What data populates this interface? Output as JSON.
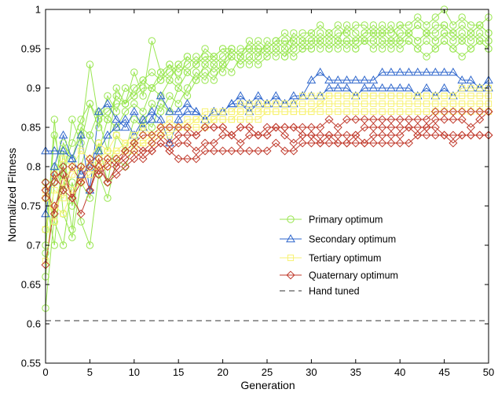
{
  "chart_data": {
    "type": "line",
    "title": "",
    "xlabel": "Generation",
    "ylabel": "Normalized Fitness",
    "xlim": [
      0,
      50
    ],
    "ylim": [
      0.55,
      1.0
    ],
    "x_ticks": [
      0,
      5,
      10,
      15,
      20,
      25,
      30,
      35,
      40,
      45,
      50
    ],
    "y_ticks": [
      0.55,
      0.6,
      0.65,
      0.7,
      0.75,
      0.8,
      0.85,
      0.9,
      0.95,
      1
    ],
    "x_tick_labels": [
      "0",
      "5",
      "10",
      "15",
      "20",
      "25",
      "30",
      "35",
      "40",
      "45",
      "50"
    ],
    "y_tick_labels": [
      "0.55",
      "0.6",
      "0.65",
      "0.7",
      "0.75",
      "0.8",
      "0.85",
      "0.9",
      "0.95",
      "1"
    ],
    "grid": false,
    "legend_position": "lower-right",
    "series": [
      {
        "name": "Primary optimum",
        "color": "#99e650",
        "marker": "circle",
        "runs": [
          [
            0.62,
            0.74,
            0.8,
            0.83,
            0.86,
            0.88,
            0.86,
            0.87,
            0.88,
            0.88,
            0.89,
            0.9,
            0.9,
            0.91,
            0.92,
            0.93,
            0.94,
            0.93,
            0.94,
            0.94,
            0.95,
            0.95,
            0.94,
            0.95,
            0.95,
            0.95,
            0.96,
            0.96,
            0.95,
            0.96,
            0.96,
            0.96,
            0.97,
            0.96,
            0.96,
            0.96,
            0.97,
            0.97,
            0.96,
            0.96,
            0.97,
            0.97,
            0.96,
            0.97,
            0.96,
            0.97,
            0.97,
            0.96,
            0.97,
            0.96,
            0.96
          ],
          [
            0.66,
            0.78,
            0.83,
            0.81,
            0.85,
            0.84,
            0.87,
            0.86,
            0.89,
            0.88,
            0.9,
            0.91,
            0.92,
            0.91,
            0.93,
            0.92,
            0.93,
            0.94,
            0.93,
            0.94,
            0.95,
            0.94,
            0.95,
            0.95,
            0.96,
            0.95,
            0.96,
            0.97,
            0.96,
            0.97,
            0.97,
            0.98,
            0.97,
            0.98,
            0.97,
            0.98,
            0.98,
            0.97,
            0.98,
            0.97,
            0.98,
            0.98,
            0.99,
            0.98,
            0.99,
            1.0,
            0.98,
            0.99,
            0.98,
            0.98,
            0.99
          ],
          [
            0.72,
            0.8,
            0.77,
            0.86,
            0.83,
            0.88,
            0.85,
            0.89,
            0.87,
            0.9,
            0.89,
            0.91,
            0.9,
            0.92,
            0.91,
            0.93,
            0.92,
            0.93,
            0.94,
            0.93,
            0.94,
            0.95,
            0.94,
            0.95,
            0.94,
            0.96,
            0.95,
            0.96,
            0.96,
            0.95,
            0.96,
            0.97,
            0.96,
            0.97,
            0.97,
            0.96,
            0.97,
            0.98,
            0.97,
            0.97,
            0.98,
            0.97,
            0.98,
            0.97,
            0.98,
            0.98,
            0.97,
            0.98,
            0.97,
            0.98,
            0.97
          ],
          [
            0.76,
            0.7,
            0.82,
            0.75,
            0.8,
            0.84,
            0.82,
            0.86,
            0.85,
            0.87,
            0.88,
            0.87,
            0.9,
            0.89,
            0.91,
            0.9,
            0.92,
            0.91,
            0.93,
            0.92,
            0.93,
            0.94,
            0.93,
            0.94,
            0.93,
            0.94,
            0.95,
            0.94,
            0.95,
            0.96,
            0.95,
            0.96,
            0.95,
            0.96,
            0.96,
            0.95,
            0.96,
            0.96,
            0.97,
            0.96,
            0.96,
            0.97,
            0.96,
            0.97,
            0.96,
            0.97,
            0.96,
            0.97,
            0.96,
            0.97,
            0.96
          ],
          [
            0.7,
            0.84,
            0.79,
            0.72,
            0.84,
            0.93,
            0.86,
            0.82,
            0.9,
            0.88,
            0.92,
            0.89,
            0.96,
            0.92,
            0.93,
            0.91,
            0.94,
            0.93,
            0.95,
            0.94,
            0.93,
            0.95,
            0.94,
            0.96,
            0.95,
            0.95,
            0.96,
            0.95,
            0.97,
            0.96,
            0.97,
            0.96,
            0.97,
            0.96,
            0.98,
            0.97,
            0.96,
            0.97,
            0.97,
            0.98,
            0.96,
            0.97,
            0.98,
            0.97,
            0.97,
            0.98,
            0.97,
            0.96,
            0.97,
            0.98,
            0.97
          ],
          [
            0.69,
            0.86,
            0.74,
            0.71,
            0.78,
            0.76,
            0.83,
            0.78,
            0.84,
            0.82,
            0.86,
            0.85,
            0.88,
            0.87,
            0.89,
            0.88,
            0.9,
            0.92,
            0.91,
            0.93,
            0.92,
            0.94,
            0.93,
            0.94,
            0.95,
            0.94,
            0.95,
            0.94,
            0.96,
            0.95,
            0.95,
            0.96,
            0.95,
            0.96,
            0.95,
            0.96,
            0.96,
            0.95,
            0.96,
            0.95,
            0.96,
            0.96,
            0.95,
            0.96,
            0.95,
            0.96,
            0.95,
            0.96,
            0.95,
            0.96,
            0.95
          ],
          [
            0.78,
            0.73,
            0.7,
            0.78,
            0.73,
            0.7,
            0.79,
            0.76,
            0.81,
            0.8,
            0.83,
            0.86,
            0.85,
            0.88,
            0.87,
            0.9,
            0.89,
            0.91,
            0.92,
            0.91,
            0.93,
            0.92,
            0.94,
            0.93,
            0.94,
            0.95,
            0.94,
            0.95,
            0.94,
            0.95,
            0.96,
            0.95,
            0.96,
            0.95,
            0.96,
            0.95,
            0.96,
            0.96,
            0.95,
            0.96,
            0.95,
            0.96,
            0.95,
            0.94,
            0.95,
            0.96,
            0.95,
            0.94,
            0.95,
            0.96,
            0.95
          ]
        ]
      },
      {
        "name": "Secondary optimum",
        "color": "#2e66cc",
        "marker": "triangle",
        "runs": [
          [
            0.74,
            0.8,
            0.84,
            0.81,
            0.79,
            0.8,
            0.82,
            0.84,
            0.85,
            0.86,
            0.84,
            0.86,
            0.87,
            0.86,
            0.83,
            0.86,
            0.87,
            0.87,
            0.86,
            0.87,
            0.87,
            0.88,
            0.88,
            0.87,
            0.88,
            0.88,
            0.88,
            0.88,
            0.88,
            0.89,
            0.89,
            0.89,
            0.9,
            0.9,
            0.9,
            0.89,
            0.9,
            0.9,
            0.9,
            0.9,
            0.9,
            0.9,
            0.89,
            0.9,
            0.89,
            0.9,
            0.89,
            0.9,
            0.9,
            0.9,
            0.9
          ],
          [
            0.82,
            0.82,
            0.82,
            0.81,
            0.84,
            0.77,
            0.87,
            0.88,
            0.86,
            0.85,
            0.87,
            0.85,
            0.86,
            0.89,
            0.87,
            0.87,
            0.88,
            0.87,
            0.86,
            0.87,
            0.87,
            0.88,
            0.89,
            0.88,
            0.89,
            0.88,
            0.89,
            0.88,
            0.89,
            0.89,
            0.91,
            0.92,
            0.91,
            0.91,
            0.91,
            0.91,
            0.91,
            0.91,
            0.92,
            0.92,
            0.92,
            0.92,
            0.92,
            0.92,
            0.92,
            0.92,
            0.92,
            0.91,
            0.91,
            0.9,
            0.91
          ]
        ]
      },
      {
        "name": "Tertiary optimum",
        "color": "#f7f272",
        "marker": "square",
        "runs": [
          [
            0.77,
            0.73,
            0.78,
            0.8,
            0.78,
            0.79,
            0.8,
            0.81,
            0.82,
            0.82,
            0.83,
            0.83,
            0.84,
            0.84,
            0.85,
            0.85,
            0.85,
            0.86,
            0.86,
            0.86,
            0.87,
            0.87,
            0.87,
            0.87,
            0.87,
            0.88,
            0.88,
            0.88,
            0.88,
            0.88,
            0.88,
            0.88,
            0.89,
            0.89,
            0.89,
            0.89,
            0.89,
            0.89,
            0.89,
            0.89,
            0.89,
            0.89,
            0.89,
            0.89,
            0.89,
            0.89,
            0.89,
            0.9,
            0.9,
            0.9,
            0.9
          ],
          [
            0.72,
            0.77,
            0.76,
            0.79,
            0.8,
            0.8,
            0.81,
            0.82,
            0.82,
            0.83,
            0.83,
            0.84,
            0.84,
            0.85,
            0.85,
            0.85,
            0.85,
            0.86,
            0.86,
            0.86,
            0.86,
            0.86,
            0.87,
            0.87,
            0.87,
            0.87,
            0.87,
            0.87,
            0.87,
            0.87,
            0.87,
            0.88,
            0.88,
            0.88,
            0.88,
            0.88,
            0.88,
            0.88,
            0.88,
            0.88,
            0.88,
            0.88,
            0.88,
            0.88,
            0.88,
            0.88,
            0.88,
            0.88,
            0.88,
            0.88,
            0.88
          ],
          [
            0.68,
            0.75,
            0.74,
            0.77,
            0.78,
            0.79,
            0.8,
            0.8,
            0.81,
            0.82,
            0.82,
            0.83,
            0.83,
            0.84,
            0.84,
            0.85,
            0.85,
            0.85,
            0.85,
            0.86,
            0.86,
            0.86,
            0.86,
            0.86,
            0.86,
            0.87,
            0.87,
            0.87,
            0.87,
            0.87,
            0.87,
            0.87,
            0.87,
            0.87,
            0.87,
            0.87,
            0.87,
            0.87,
            0.87,
            0.87,
            0.87,
            0.87,
            0.87,
            0.87,
            0.87,
            0.87,
            0.87,
            0.87,
            0.87,
            0.87,
            0.87
          ],
          [
            0.76,
            0.79,
            0.81,
            0.8,
            0.82,
            0.81,
            0.83,
            0.82,
            0.84,
            0.83,
            0.84,
            0.85,
            0.84,
            0.85,
            0.86,
            0.85,
            0.86,
            0.86,
            0.87,
            0.87,
            0.87,
            0.87,
            0.88,
            0.88,
            0.88,
            0.88,
            0.88,
            0.88,
            0.88,
            0.89,
            0.89,
            0.89,
            0.89,
            0.89,
            0.89,
            0.89,
            0.89,
            0.89,
            0.89,
            0.89,
            0.89,
            0.89,
            0.89,
            0.89,
            0.89,
            0.89,
            0.89,
            0.89,
            0.89,
            0.89,
            0.89
          ]
        ]
      },
      {
        "name": "Quaternary optimum",
        "color": "#c0392b",
        "marker": "diamond",
        "runs": [
          [
            0.675,
            0.75,
            0.77,
            0.76,
            0.78,
            0.8,
            0.79,
            0.8,
            0.81,
            0.82,
            0.83,
            0.84,
            0.84,
            0.85,
            0.85,
            0.85,
            0.85,
            0.84,
            0.85,
            0.85,
            0.85,
            0.84,
            0.85,
            0.85,
            0.84,
            0.84,
            0.85,
            0.85,
            0.85,
            0.85,
            0.85,
            0.85,
            0.86,
            0.85,
            0.86,
            0.86,
            0.86,
            0.86,
            0.86,
            0.86,
            0.86,
            0.86,
            0.86,
            0.86,
            0.87,
            0.87,
            0.87,
            0.87,
            0.87,
            0.87,
            0.87
          ],
          [
            0.77,
            0.78,
            0.8,
            0.76,
            0.74,
            0.77,
            0.8,
            0.78,
            0.79,
            0.8,
            0.81,
            0.82,
            0.82,
            0.83,
            0.82,
            0.83,
            0.83,
            0.82,
            0.83,
            0.83,
            0.84,
            0.84,
            0.83,
            0.84,
            0.84,
            0.84,
            0.85,
            0.84,
            0.83,
            0.84,
            0.84,
            0.84,
            0.84,
            0.84,
            0.84,
            0.84,
            0.85,
            0.85,
            0.85,
            0.85,
            0.85,
            0.85,
            0.85,
            0.85,
            0.86,
            0.86,
            0.86,
            0.86,
            0.85,
            0.86,
            0.87
          ],
          [
            0.78,
            0.74,
            0.79,
            0.76,
            0.8,
            0.77,
            0.81,
            0.78,
            0.8,
            0.81,
            0.82,
            0.81,
            0.82,
            0.83,
            0.82,
            0.81,
            0.81,
            0.81,
            0.82,
            0.82,
            0.82,
            0.82,
            0.82,
            0.82,
            0.82,
            0.82,
            0.83,
            0.82,
            0.82,
            0.83,
            0.83,
            0.83,
            0.83,
            0.83,
            0.83,
            0.83,
            0.83,
            0.83,
            0.83,
            0.83,
            0.83,
            0.83,
            0.84,
            0.84,
            0.84,
            0.84,
            0.84,
            0.84,
            0.84,
            0.84,
            0.84
          ],
          [
            0.76,
            0.79,
            0.77,
            0.8,
            0.78,
            0.81,
            0.79,
            0.81,
            0.8,
            0.82,
            0.83,
            0.82,
            0.83,
            0.84,
            0.83,
            0.84,
            0.84,
            0.84,
            0.85,
            0.85,
            0.85,
            0.84,
            0.85,
            0.85,
            0.84,
            0.85,
            0.85,
            0.85,
            0.85,
            0.84,
            0.84,
            0.83,
            0.84,
            0.83,
            0.83,
            0.84,
            0.83,
            0.84,
            0.84,
            0.84,
            0.84,
            0.85,
            0.84,
            0.85,
            0.85,
            0.84,
            0.83,
            0.84,
            0.84,
            0.84,
            0.84
          ]
        ]
      },
      {
        "name": "Hand tuned",
        "color": "#333333",
        "marker": "none",
        "style": "dashed",
        "value": 0.604
      }
    ]
  }
}
